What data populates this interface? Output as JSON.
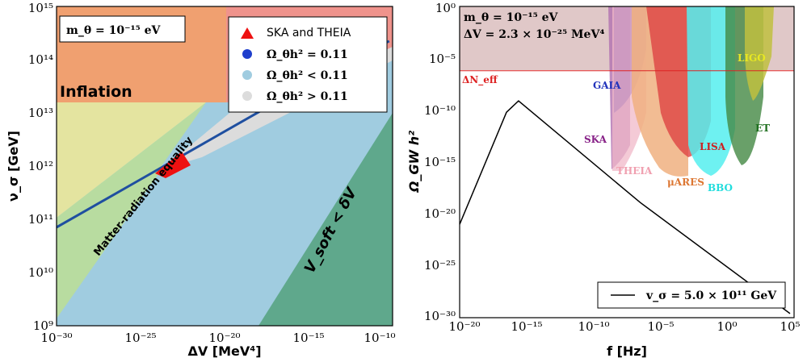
{
  "colors": {
    "inflation": "#f0a070",
    "pink_top": "#ef9090",
    "matter_yellow": "#e4e4a0",
    "green_light": "#b8dca0",
    "blue_light": "#a0cce0",
    "grey": "#dcdcdc",
    "green_dark": "#5fa88c",
    "relic_blue": "#1f4fa0",
    "red_marker": "#ee1111",
    "neff_band": "#e0c8c8",
    "neff_line": "#dd2222"
  },
  "chart_data": [
    {
      "type": "area",
      "xlabel": "ΔV [MeV⁴]",
      "ylabel": "ν_σ [GeV]",
      "xscale": "log",
      "yscale": "log",
      "xlim_exp": [
        -30,
        -10
      ],
      "ylim_exp": [
        9,
        15
      ],
      "x_ticks": [
        "10⁻³⁰",
        "10⁻²⁵",
        "10⁻²⁰",
        "10⁻¹⁵",
        "10⁻¹⁰"
      ],
      "y_ticks": [
        "10⁹",
        "10¹⁰",
        "10¹¹",
        "10¹²",
        "10¹³",
        "10¹⁴",
        "10¹⁵"
      ],
      "info_box": "m_θ = 10⁻¹⁵ eV",
      "legend": [
        {
          "label": "SKA and THEIA",
          "marker": "triangle",
          "color": "#ee1111"
        },
        {
          "label": "Ω_θh² = 0.11",
          "marker": "circle",
          "color": "#1f3fcc"
        },
        {
          "label": "Ω_θh² < 0.11",
          "marker": "circle",
          "color": "#a0cce0"
        },
        {
          "label": "Ω_θh² > 0.11",
          "marker": "circle",
          "color": "#dcdcdc"
        }
      ],
      "region_labels": {
        "inflation": "Inflation",
        "matter": "Matter-radiation equality",
        "vsoft": "V_soft < δV"
      },
      "relic_line": {
        "x_exp": [
          -30,
          -25,
          -20,
          -15,
          -10.2
        ],
        "y_exp": [
          10.85,
          11.75,
          12.65,
          13.55,
          14.35
        ]
      }
    },
    {
      "type": "line",
      "xlabel": "f [Hz]",
      "ylabel": "Ω_GW h²",
      "xscale": "log",
      "yscale": "log",
      "xlim_exp": [
        -20,
        5
      ],
      "ylim_exp": [
        -30,
        0
      ],
      "x_ticks": [
        "10⁻²⁰",
        "10⁻¹⁵",
        "10⁻¹⁰",
        "10⁻⁵",
        "10⁰",
        "10⁵"
      ],
      "y_ticks": [
        "10⁰",
        "10⁻⁵",
        "10⁻¹⁰",
        "10⁻¹⁵",
        "10⁻²⁰",
        "10⁻²⁵",
        "10⁻³⁰"
      ],
      "info_line1": "m_θ = 10⁻¹⁵ eV",
      "info_line2": "ΔV = 2.3 × 10⁻²⁵ MeV⁴",
      "neff_label": "ΔN_eff",
      "neff_exp": -6.2,
      "series": [
        {
          "name": "v_σ = 5.0 × 10¹¹ GeV",
          "x_exp": [
            -20,
            -16.5,
            -15.6,
            -6.5,
            4.7
          ],
          "y_exp": [
            -21,
            -10.2,
            -9.1,
            -18.9,
            -29.6
          ]
        }
      ],
      "detectors": [
        {
          "name": "GAIA",
          "color": "#2233bb"
        },
        {
          "name": "SKA",
          "color": "#882288"
        },
        {
          "name": "THEIA",
          "color": "#f0a0b0"
        },
        {
          "name": "μARES",
          "color": "#dd7733"
        },
        {
          "name": "LISA",
          "color": "#cc2222"
        },
        {
          "name": "BBO",
          "color": "#22dddd"
        },
        {
          "name": "LIGO",
          "color": "#e8e822"
        },
        {
          "name": "ET",
          "color": "#1e6e1e"
        }
      ]
    }
  ]
}
